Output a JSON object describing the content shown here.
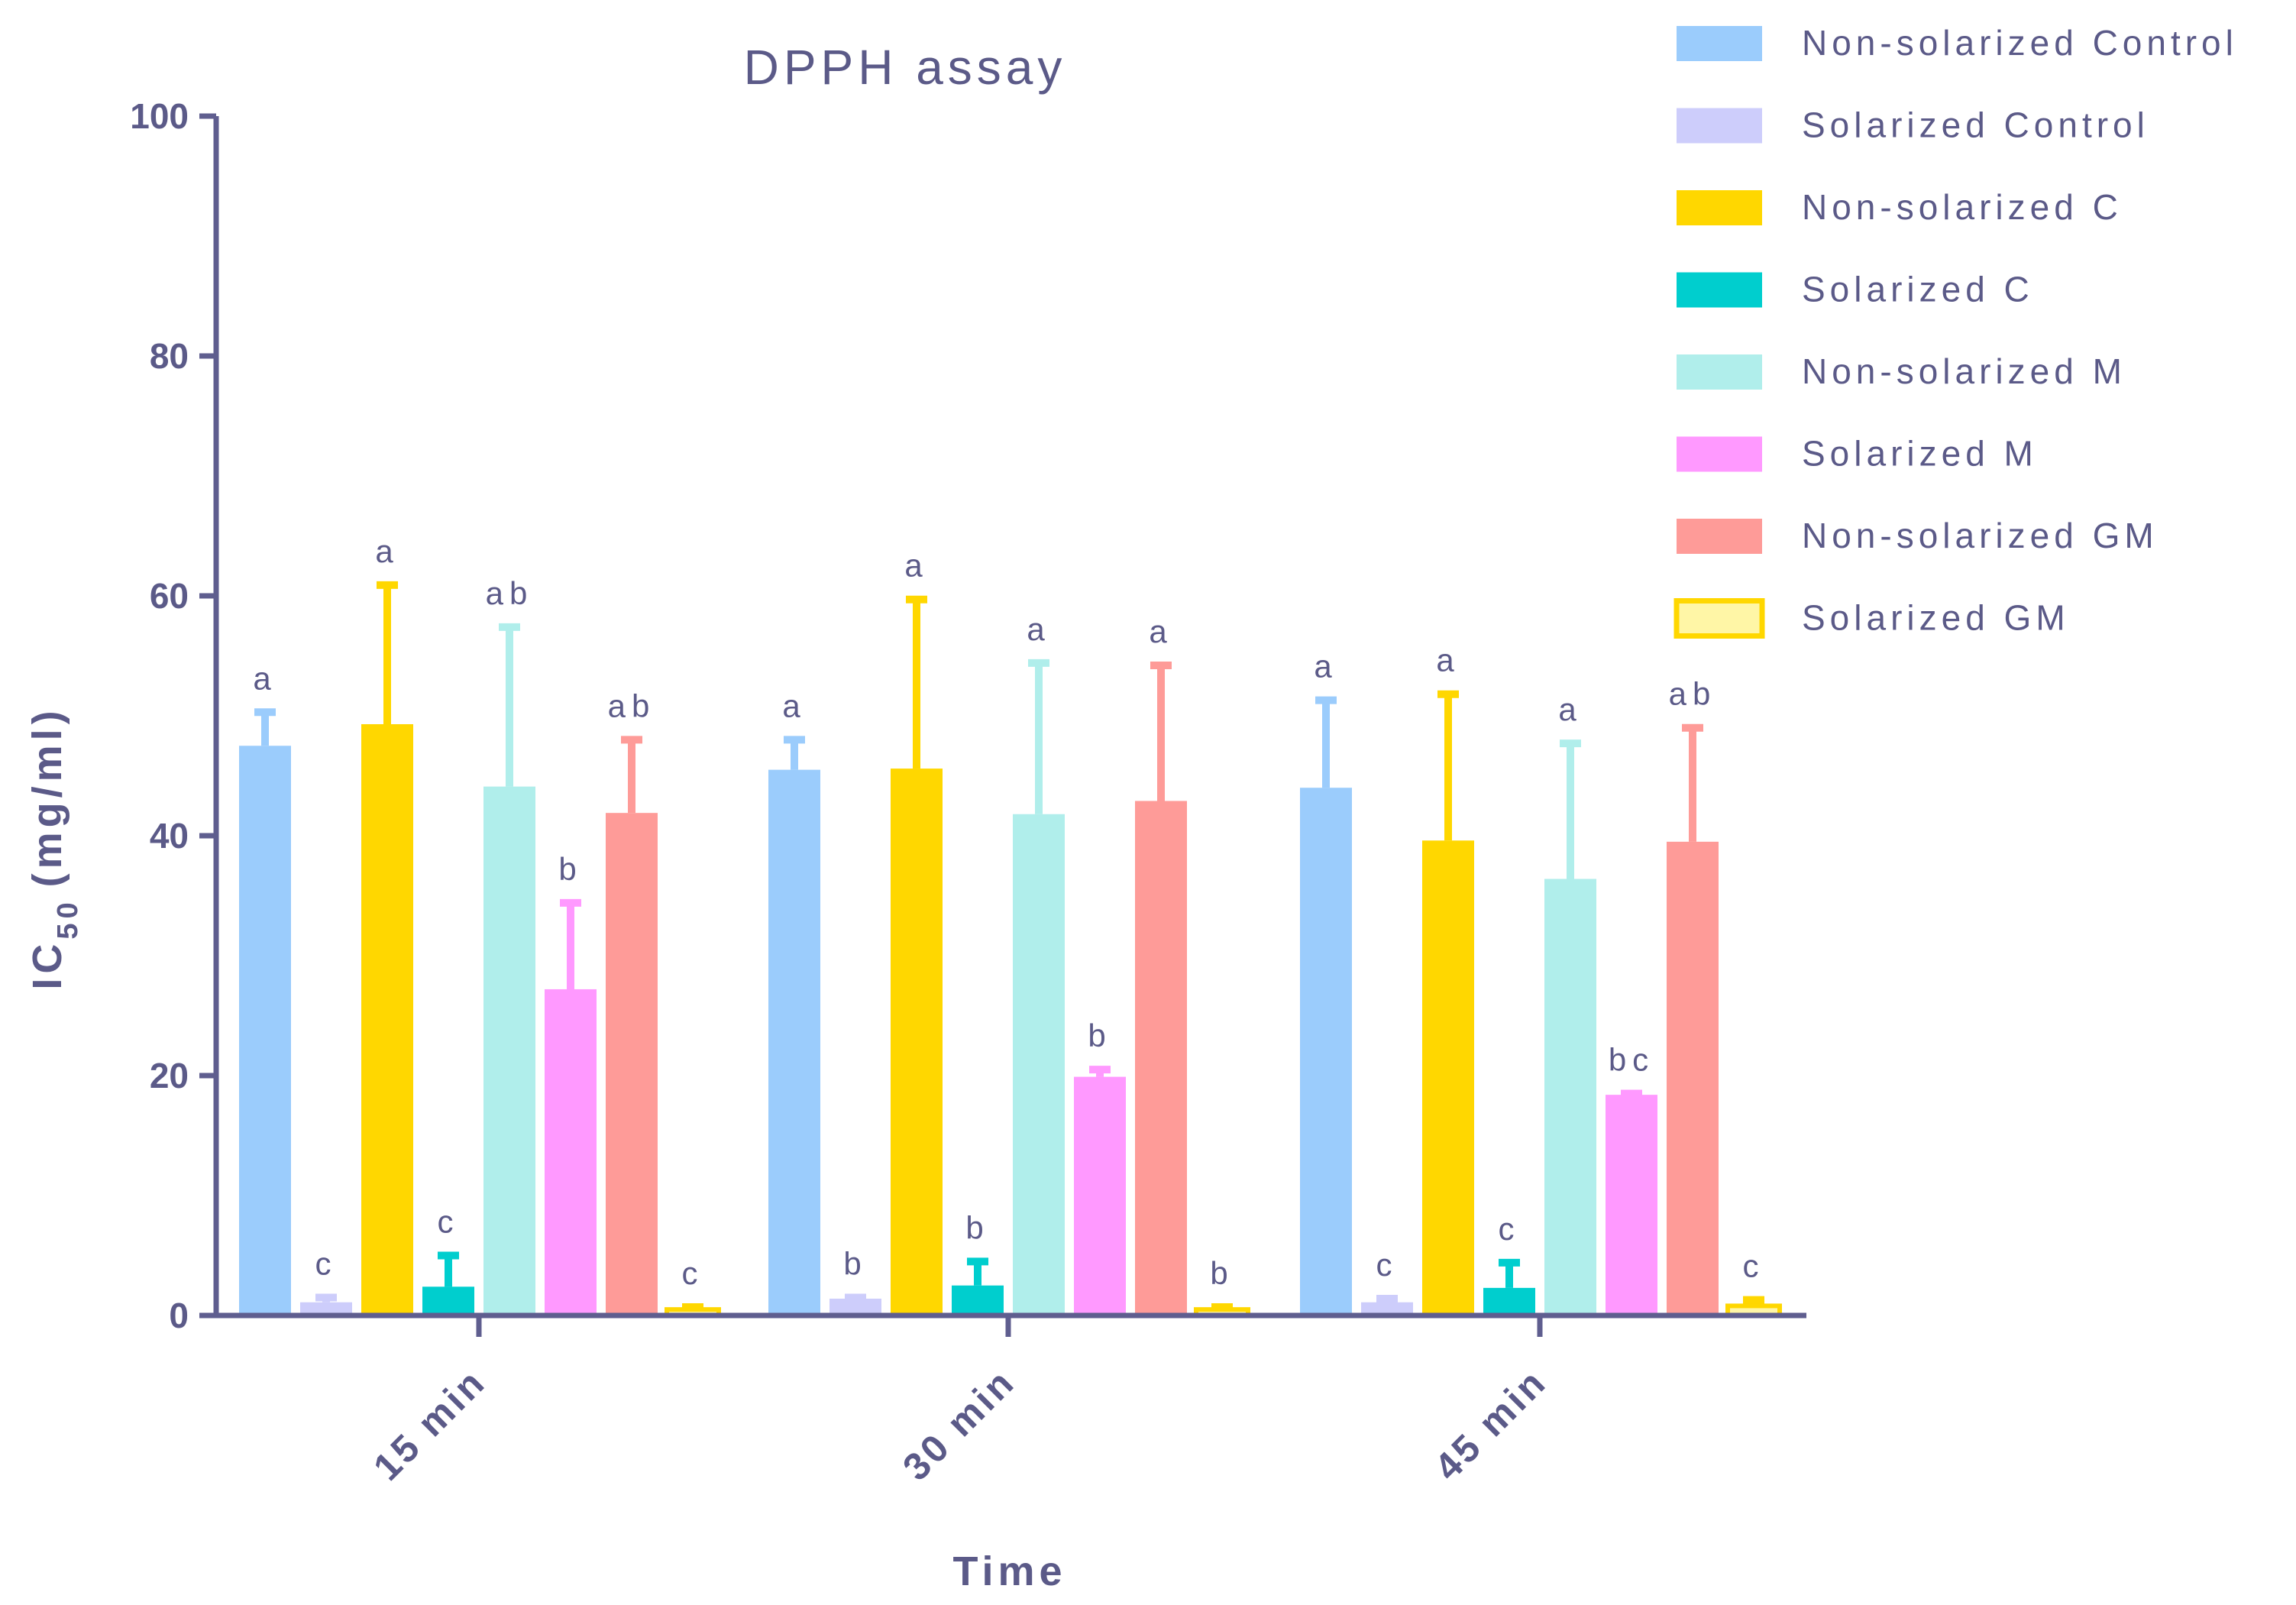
{
  "colors": {
    "axis": "#5f5e8f",
    "text": "#5b5a88"
  },
  "chart_data": {
    "type": "bar",
    "title": "DPPH assay",
    "xlabel": "Time",
    "ylabel_main": "IC",
    "ylabel_sub": "50",
    "ylabel_unit": "(mg/ml)",
    "ylim": [
      0,
      100
    ],
    "yticks": [
      0,
      20,
      40,
      60,
      80,
      100
    ],
    "categories": [
      "15 min",
      "30 min",
      "45 min"
    ],
    "legend_position": "top-right",
    "series": [
      {
        "name": "Non-solarized Control",
        "color": "#9bccfc",
        "values": [
          47.5,
          45.5,
          44.0
        ],
        "errors": [
          2.8,
          2.5,
          7.3
        ],
        "labels": [
          "a",
          "a",
          "a"
        ]
      },
      {
        "name": "Solarized Control",
        "color": "#cdcdfb",
        "values": [
          1.1,
          1.4,
          1.1
        ],
        "errors": [
          0.4,
          0.1,
          0.3
        ],
        "labels": [
          "c",
          "b",
          "c"
        ]
      },
      {
        "name": "Non-solarized C",
        "color": "#ffd700",
        "values": [
          49.3,
          45.6,
          39.6
        ],
        "errors": [
          11.6,
          14.1,
          12.2
        ],
        "labels": [
          "a",
          "a",
          "a"
        ]
      },
      {
        "name": "Solarized C",
        "color": "#00cece",
        "values": [
          2.4,
          2.5,
          2.3
        ],
        "errors": [
          2.6,
          2.0,
          2.1
        ],
        "labels": [
          "c",
          "b",
          "c"
        ]
      },
      {
        "name": "Non-solarized M",
        "color": "#b0eeeb",
        "values": [
          44.1,
          41.8,
          36.4
        ],
        "errors": [
          13.3,
          12.6,
          11.3
        ],
        "labels": [
          "ab",
          "a",
          "a"
        ]
      },
      {
        "name": "Solarized M",
        "color": "#ff99ff",
        "values": [
          27.2,
          19.9,
          18.4
        ],
        "errors": [
          7.2,
          0.6,
          0.1
        ],
        "labels": [
          "b",
          "b",
          "bc"
        ]
      },
      {
        "name": "Non-solarized GM",
        "color": "#fe9b98",
        "values": [
          41.9,
          42.9,
          39.5
        ],
        "errors": [
          6.1,
          11.3,
          9.5
        ],
        "labels": [
          "ab",
          "a",
          "ab"
        ]
      },
      {
        "name": "Solarized GM",
        "color": "#ffd700",
        "fill": "#fff6a6",
        "values": [
          0.5,
          0.5,
          0.8
        ],
        "errors": [
          0.2,
          0.2,
          0.5
        ],
        "labels": [
          "c",
          "b",
          "c"
        ]
      }
    ]
  }
}
